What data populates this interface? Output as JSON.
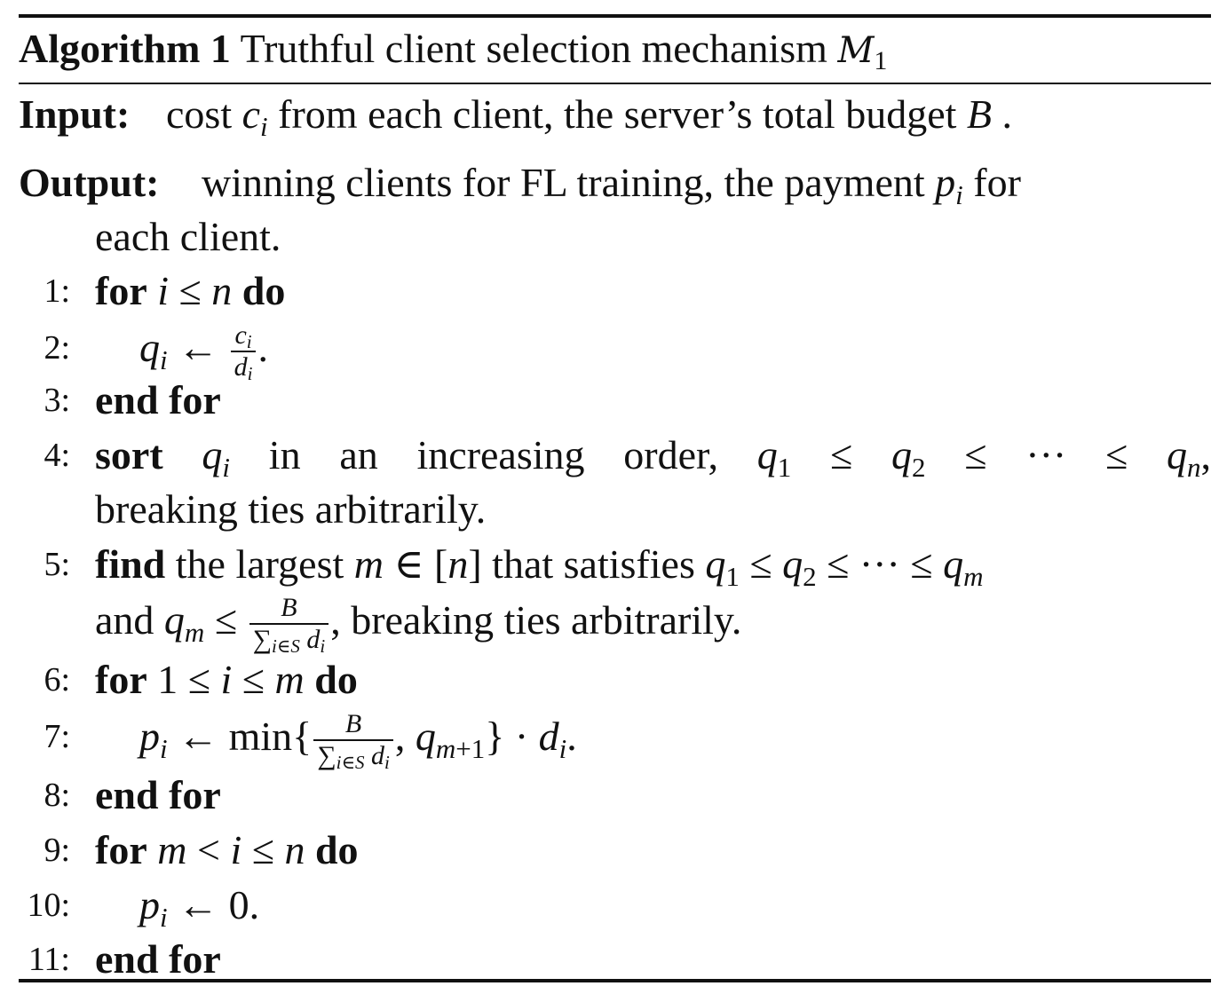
{
  "algorithm": {
    "caption_label": "Algorithm 1",
    "caption_title": "Truthful client selection mechanism",
    "mechanism_symbol": "M",
    "mechanism_subscript": "1",
    "input_label": "Input:",
    "input_text": "cost cᵢ from each client, the server’s total budget B .",
    "output_label": "Output:",
    "output_text_line1": "winning clients for FL training, the payment pᵢ for",
    "output_text_line2": "each client.",
    "steps": [
      {
        "num": "1:",
        "text": "for i ≤ n do"
      },
      {
        "num": "2:",
        "text": "qᵢ ← cᵢ / dᵢ."
      },
      {
        "num": "3:",
        "text": "end for"
      },
      {
        "num": "4:",
        "text": "sort qᵢ in an increasing order, q₁ ≤ q₂ ≤ ··· ≤ qₙ, breaking ties arbitrarily."
      },
      {
        "num": "5:",
        "text": "find the largest m ∈ [n] that satisfies q₁ ≤ q₂ ≤ ··· ≤ qₘ and qₘ ≤ B / ∑ i∈S dᵢ, breaking ties arbitrarily."
      },
      {
        "num": "6:",
        "text": "for 1 ≤ i ≤ m do"
      },
      {
        "num": "7:",
        "text": "pᵢ ← min{B / ∑ i∈S dᵢ, q m+1} · dᵢ."
      },
      {
        "num": "8:",
        "text": "end for"
      },
      {
        "num": "9:",
        "text": "for m < i ≤ n do"
      },
      {
        "num": "10:",
        "text": "pᵢ ← 0."
      },
      {
        "num": "11:",
        "text": "end for"
      }
    ],
    "keywords": {
      "for": "for",
      "do": "do",
      "end_for": "end for",
      "sort": "sort",
      "find": "find"
    }
  }
}
